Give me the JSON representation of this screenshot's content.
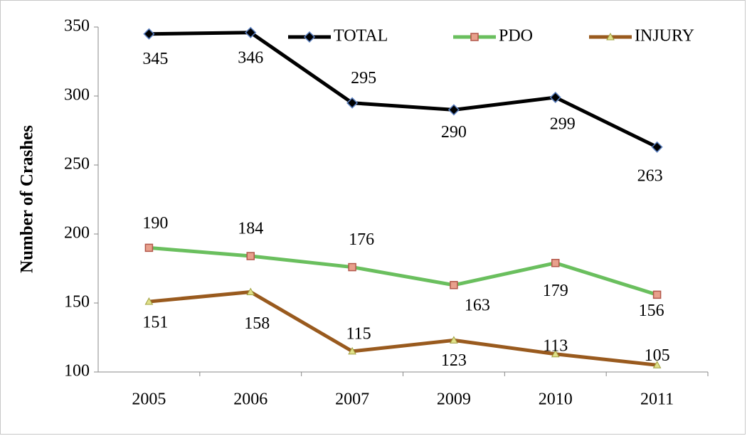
{
  "chart_data": {
    "type": "line",
    "y_label": "Number of Crashes",
    "categories": [
      "2005",
      "2006",
      "2007",
      "2009",
      "2010",
      "2011"
    ],
    "series": [
      {
        "name": "TOTAL",
        "color": "#000000",
        "marker": "diamond",
        "values": [
          345,
          346,
          295,
          290,
          299,
          263
        ]
      },
      {
        "name": "PDO",
        "color": "#6abf5e",
        "marker": "square",
        "values": [
          190,
          184,
          176,
          163,
          179,
          156
        ]
      },
      {
        "name": "INJURY",
        "color": "#995a1e",
        "marker": "triangle",
        "values": [
          151,
          158,
          115,
          123,
          113,
          105
        ]
      }
    ],
    "ylim": [
      100,
      350
    ],
    "yticks": [
      100,
      150,
      200,
      250,
      300,
      350
    ],
    "grid": false,
    "legend": "top-right",
    "data_labels": true
  }
}
